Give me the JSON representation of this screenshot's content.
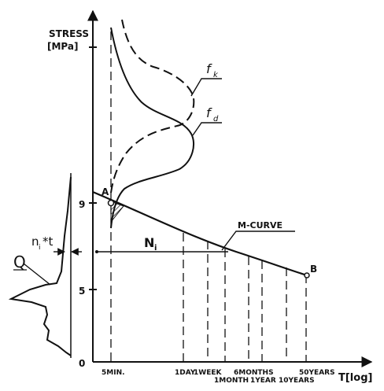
{
  "axes": {
    "y_label_line1": "STRESS",
    "y_label_line2": "[MPa]",
    "x_label": "T[log]",
    "y_ticks": [
      "0",
      "5",
      "9"
    ]
  },
  "time_ticks": {
    "five_min": "5MIN.",
    "one_day": "1DAY",
    "one_week": "1WEEK",
    "six_months": "6MONTHS",
    "one_month": "1MONTH",
    "one_year": "1YEAR",
    "ten_years": "10YEARS",
    "fifty_years": "50YEARS"
  },
  "curve_labels": {
    "f_k": "f",
    "f_k_sub": "k",
    "f_d": "f",
    "f_d_sub": "d",
    "m_curve": "M-CURVE",
    "n_i": "N",
    "n_i_sub": "i",
    "point_a": "A",
    "point_b": "B"
  },
  "load_distribution": {
    "q_label": "Q",
    "n_label": "n",
    "n_sub": "i",
    "n_suffix": "*t"
  },
  "colors": {
    "ink": "#111111",
    "background": "#ffffff"
  }
}
